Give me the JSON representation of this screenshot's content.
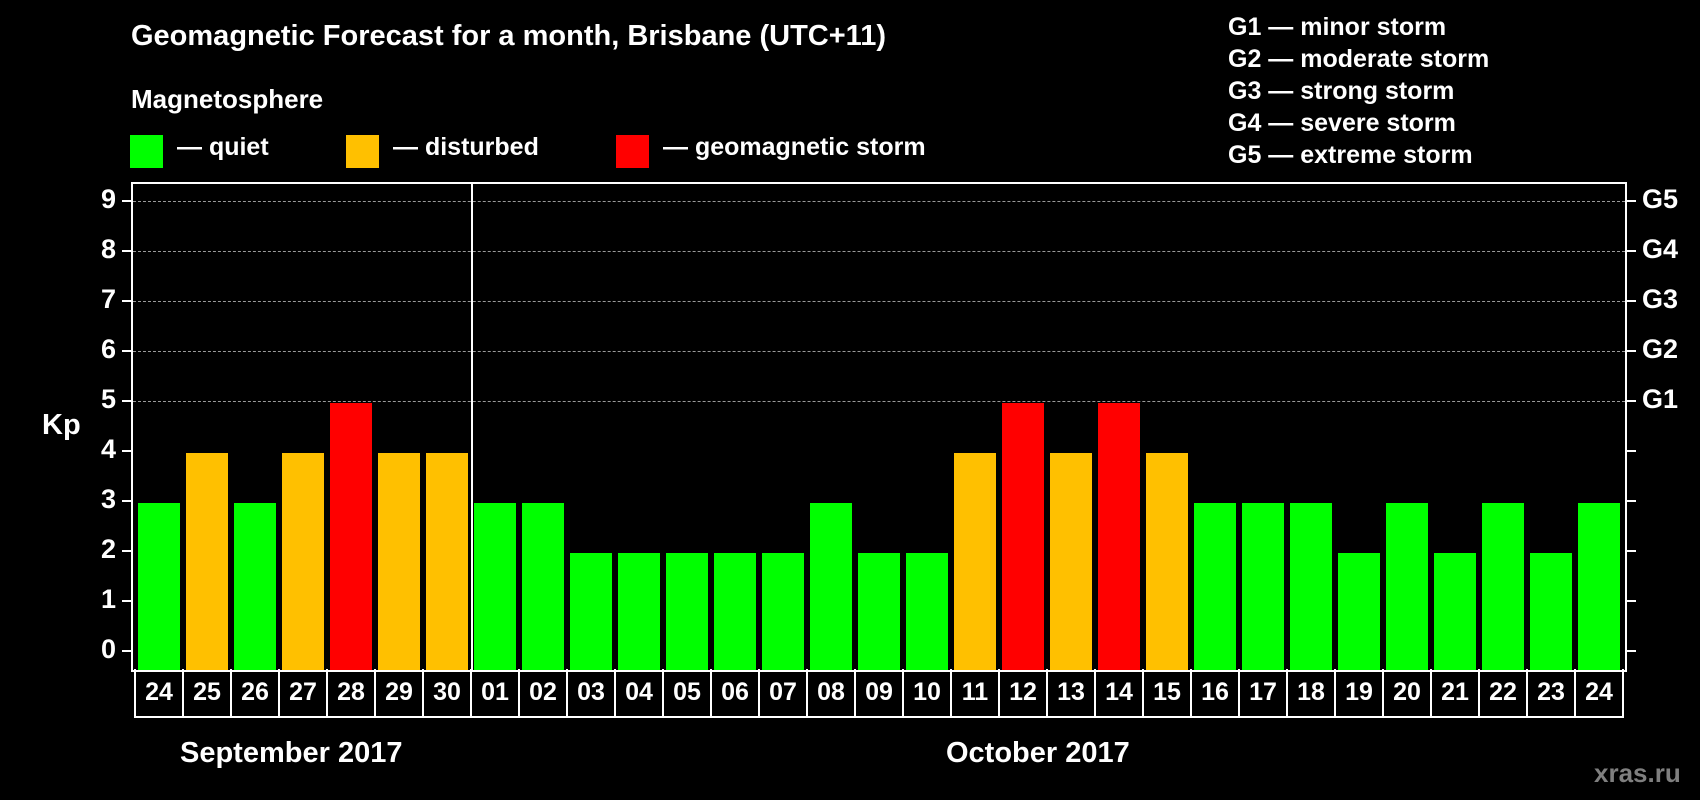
{
  "title": "Geomagnetic Forecast for a month, Brisbane (UTC+11)",
  "legend": {
    "heading": "Magnetosphere",
    "items": [
      {
        "label": "— quiet",
        "color": "#00ff00"
      },
      {
        "label": "— disturbed",
        "color": "#ffc000"
      },
      {
        "label": "— geomagnetic storm",
        "color": "#ff0000"
      }
    ]
  },
  "storm_scale": [
    "G1 — minor storm",
    "G2 — moderate storm",
    "G3 — strong storm",
    "G4 — severe storm",
    "G5 — extreme storm"
  ],
  "axis": {
    "ylabel": "Kp",
    "yticks": [
      "0",
      "1",
      "2",
      "3",
      "4",
      "5",
      "6",
      "7",
      "8",
      "9"
    ],
    "right_labels": [
      {
        "kp": 5,
        "label": "G1"
      },
      {
        "kp": 6,
        "label": "G2"
      },
      {
        "kp": 7,
        "label": "G3"
      },
      {
        "kp": 8,
        "label": "G4"
      },
      {
        "kp": 9,
        "label": "G5"
      }
    ]
  },
  "months": [
    {
      "label": "September 2017"
    },
    {
      "label": "October 2017"
    }
  ],
  "watermark": "xras.ru",
  "colors": {
    "quiet": "#00ff00",
    "disturbed": "#ffc000",
    "storm": "#ff0000"
  },
  "chart_data": {
    "type": "bar",
    "title": "Geomagnetic Forecast for a month, Brisbane (UTC+11)",
    "xlabel": "September 2017 / October 2017",
    "ylabel": "Kp",
    "ylim": [
      0,
      9
    ],
    "grid": true,
    "legend_position": "top",
    "categories": [
      "24",
      "25",
      "26",
      "27",
      "28",
      "29",
      "30",
      "01",
      "02",
      "03",
      "04",
      "05",
      "06",
      "07",
      "08",
      "09",
      "10",
      "11",
      "12",
      "13",
      "14",
      "15",
      "16",
      "17",
      "18",
      "19",
      "20",
      "21",
      "22",
      "23",
      "24"
    ],
    "values": [
      3,
      4,
      3,
      4,
      5,
      4,
      4,
      3,
      3,
      2,
      2,
      2,
      2,
      2,
      3,
      2,
      2,
      4,
      5,
      4,
      5,
      4,
      3,
      3,
      3,
      2,
      3,
      2,
      3,
      2,
      3
    ],
    "status": [
      "quiet",
      "disturbed",
      "quiet",
      "disturbed",
      "storm",
      "disturbed",
      "disturbed",
      "quiet",
      "quiet",
      "quiet",
      "quiet",
      "quiet",
      "quiet",
      "quiet",
      "quiet",
      "quiet",
      "quiet",
      "disturbed",
      "storm",
      "disturbed",
      "storm",
      "disturbed",
      "quiet",
      "quiet",
      "quiet",
      "quiet",
      "quiet",
      "quiet",
      "quiet",
      "quiet",
      "quiet"
    ],
    "month_split_after_index": 6,
    "secondary_axis": {
      "G1": 5,
      "G2": 6,
      "G3": 7,
      "G4": 8,
      "G5": 9
    }
  }
}
